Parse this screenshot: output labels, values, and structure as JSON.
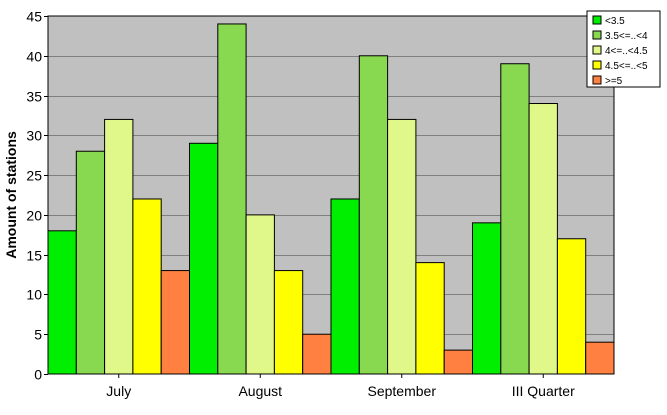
{
  "chart_data": {
    "type": "bar",
    "categories": [
      "July",
      "August",
      "September",
      "III Quarter"
    ],
    "series": [
      {
        "name": "<3.5",
        "color": "#00ee00",
        "values": [
          18,
          29,
          22,
          19
        ]
      },
      {
        "name": "3.5<=..<4",
        "color": "#88d850",
        "values": [
          28,
          44,
          40,
          39
        ]
      },
      {
        "name": "4<=..<4.5",
        "color": "#e0f88a",
        "values": [
          32,
          20,
          32,
          34
        ]
      },
      {
        "name": "4.5<=..<5",
        "color": "#ffff00",
        "values": [
          22,
          13,
          14,
          17
        ]
      },
      {
        "name": ">=5",
        "color": "#ff8040",
        "values": [
          13,
          5,
          3,
          4
        ]
      }
    ],
    "ylabel": "Amount of stations",
    "xlabel": "",
    "ylim": [
      0,
      45
    ],
    "yticks": [
      0,
      5,
      10,
      15,
      20,
      25,
      30,
      35,
      40,
      45
    ],
    "grid": true,
    "legend_position": "top-right",
    "plot_background": "#c0c0c0"
  }
}
